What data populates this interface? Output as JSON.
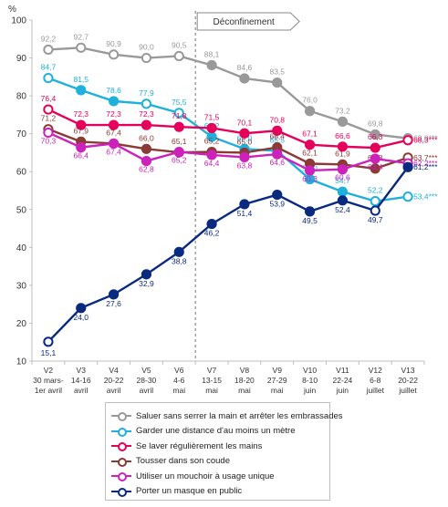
{
  "chart_data": {
    "type": "line",
    "yunit": "%",
    "ylim": [
      10,
      100
    ],
    "yticks": [
      10,
      20,
      30,
      40,
      50,
      60,
      70,
      80,
      90,
      100
    ],
    "categories": [
      {
        "wave": "V2",
        "dates": "30 mars-",
        "month": "1er avril"
      },
      {
        "wave": "V3",
        "dates": "14-16",
        "month": "avril"
      },
      {
        "wave": "V4",
        "dates": "20-22",
        "month": "avril"
      },
      {
        "wave": "V5",
        "dates": "28-30",
        "month": "avril"
      },
      {
        "wave": "V6",
        "dates": "4-6",
        "month": "mai"
      },
      {
        "wave": "V7",
        "dates": "13-15",
        "month": "mai"
      },
      {
        "wave": "V8",
        "dates": "18-20",
        "month": "mai"
      },
      {
        "wave": "V9",
        "dates": "27-29",
        "month": "mai"
      },
      {
        "wave": "V10",
        "dates": "8-10",
        "month": "juin"
      },
      {
        "wave": "V11",
        "dates": "22-24",
        "month": "juin"
      },
      {
        "wave": "V12",
        "dates": "6-8",
        "month": "juillet"
      },
      {
        "wave": "V13",
        "dates": "20-22",
        "month": "juillet"
      }
    ],
    "annotation": {
      "label": "Déconfinement",
      "between": [
        "V6",
        "V7"
      ]
    },
    "series": [
      {
        "name": "Saluer sans serrer la main et arrêter les embrassades",
        "color": "#999999",
        "values": [
          92.2,
          92.7,
          90.9,
          90.0,
          90.5,
          88.1,
          84.6,
          83.5,
          76.0,
          73.2,
          69.8,
          68.8
        ],
        "labels": [
          "92,2",
          "92,7",
          "90,9",
          "90,0",
          "90,5",
          "88,1",
          "84,6",
          "83,5",
          "76,0",
          "73,2",
          "69,8",
          "68,8***"
        ],
        "filled": [
          false,
          false,
          false,
          false,
          false,
          true,
          true,
          true,
          true,
          true,
          true,
          false
        ]
      },
      {
        "name": "Garder une distance d'au moins un mètre",
        "color": "#1fb1dc",
        "values": [
          84.7,
          81.5,
          78.6,
          77.9,
          75.5,
          69.2,
          66.0,
          65.5,
          58.0,
          54.7,
          52.2,
          53.4
        ],
        "labels": [
          "84,7",
          "81,5",
          "78,6",
          "77,9",
          "75,5",
          "69,2",
          "66,0",
          "65,5",
          "58,0",
          "54,7",
          "52,2",
          "53,4***"
        ],
        "filled": [
          false,
          true,
          true,
          false,
          false,
          true,
          true,
          true,
          true,
          true,
          false,
          false
        ]
      },
      {
        "name": "Se laver régulièrement les mains",
        "color": "#e5005c",
        "values": [
          76.4,
          72.3,
          72.3,
          72.3,
          71.8,
          71.5,
          70.1,
          70.8,
          67.1,
          66.6,
          66.3,
          68.3
        ],
        "labels": [
          "76,4",
          "72,3",
          "72,3",
          "72,3",
          "71,8",
          "71,5",
          "70,1",
          "70,8",
          "67,1",
          "66,6",
          "66,3",
          "68,3***"
        ],
        "filled": [
          false,
          true,
          true,
          true,
          true,
          true,
          true,
          true,
          true,
          true,
          true,
          false
        ]
      },
      {
        "name": "Tousser dans son coude",
        "color": "#8b3a35",
        "values": [
          71.2,
          67.9,
          67.4,
          66.0,
          65.1,
          65.2,
          65.0,
          66.4,
          62.1,
          61.9,
          60.8,
          63.7
        ],
        "labels": [
          "71,2",
          "67,9",
          "67,4",
          "66,0",
          "65,1",
          "65,2",
          "65,0",
          "66,4",
          "62,1",
          "61,9",
          "60,8",
          "63,7***"
        ],
        "filled": [
          false,
          true,
          true,
          true,
          true,
          true,
          true,
          true,
          true,
          true,
          true,
          false
        ]
      },
      {
        "name": "Utiliser un mouchoir à usage unique",
        "color": "#cc22bb",
        "values": [
          70.3,
          66.4,
          67.4,
          62.8,
          65.2,
          64.4,
          63.8,
          64.6,
          60.3,
          60.6,
          63.4,
          62.2
        ],
        "labels": [
          "70,3",
          "66,4",
          "67,4",
          "62,8",
          "65,2",
          "64,4",
          "63,8",
          "64,6",
          "60,3",
          "60,6",
          "63,4",
          "62,2***"
        ],
        "filled": [
          false,
          true,
          true,
          true,
          true,
          true,
          true,
          true,
          true,
          true,
          true,
          false
        ]
      },
      {
        "name": "Porter un masque en public",
        "color": "#0a2a80",
        "values": [
          15.1,
          24.0,
          27.6,
          32.9,
          38.8,
          46.2,
          51.4,
          53.9,
          49.5,
          52.4,
          49.7,
          61.2
        ],
        "labels": [
          "15,1",
          "24,0",
          "27,6",
          "32,9",
          "38,8",
          "46,2",
          "51,4",
          "53,9",
          "49,5",
          "52,4",
          "49,7",
          "61,2***"
        ],
        "filled": [
          false,
          true,
          true,
          true,
          true,
          true,
          true,
          true,
          true,
          true,
          false,
          true
        ]
      }
    ]
  }
}
